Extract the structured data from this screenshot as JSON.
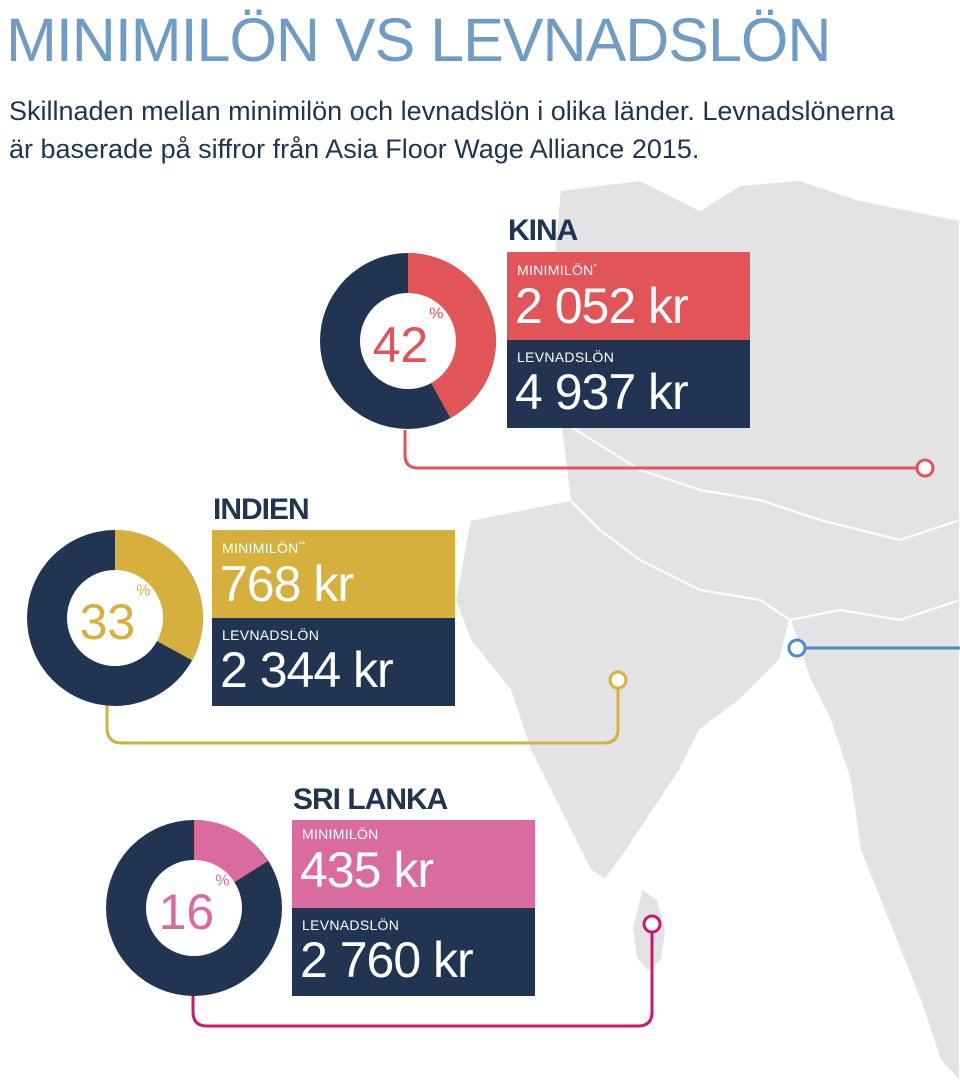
{
  "title": "MINIMILÖN VS LEVNADSLÖN",
  "subtitle": "Skillnaden mellan minimilön och levnadslön i olika länder. Levnadslönerna är baserade på siffror från Asia Floor Wage Alliance 2015.",
  "colors": {
    "navy": "#213552",
    "kina": "#e15559",
    "indien": "#d5b03c",
    "srilanka": "#d96b9f",
    "srilanka_line": "#c91b6e",
    "blue_marker": "#4a8cca",
    "map": "#e3e3e5"
  },
  "chart_data": [
    {
      "type": "pie",
      "country": "KINA",
      "percent": 42,
      "percent_text": "42",
      "percent_sign": "%",
      "minimum_label": "MINIMILÖN",
      "minimum_mark": "*",
      "minimum_value": "2 052 kr",
      "living_label": "LEVNADSLÖN",
      "living_value": "4 937 kr",
      "color": "#e15559"
    },
    {
      "type": "pie",
      "country": "INDIEN",
      "percent": 33,
      "percent_text": "33",
      "percent_sign": "%",
      "minimum_label": "MINIMILÖN",
      "minimum_mark": "**",
      "minimum_value": "768 kr",
      "living_label": "LEVNADSLÖN",
      "living_value": "2 344 kr",
      "color": "#d5b03c"
    },
    {
      "type": "pie",
      "country": "SRI LANKA",
      "percent": 16,
      "percent_text": "16",
      "percent_sign": "%",
      "minimum_label": "MINIMILÖN",
      "minimum_mark": "",
      "minimum_value": "435 kr",
      "living_label": "LEVNADSLÖN",
      "living_value": "2 760 kr",
      "color": "#d96b9f"
    }
  ]
}
